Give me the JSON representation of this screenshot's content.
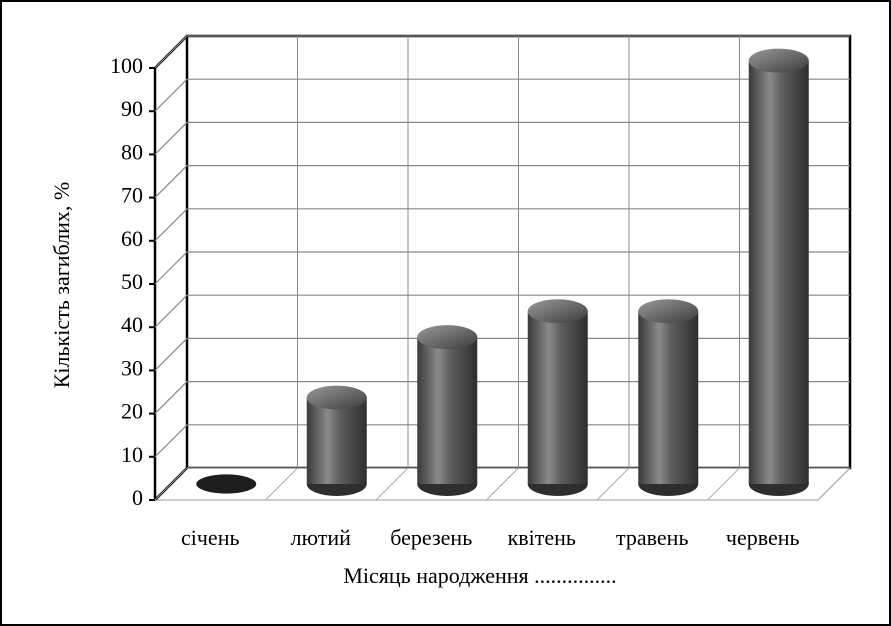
{
  "chart_data": {
    "type": "bar3d",
    "categories": [
      "січень",
      "лютий",
      "березень",
      "квітень",
      "травень",
      "червень"
    ],
    "values": [
      0,
      20,
      34,
      40,
      40,
      98
    ],
    "color": "#4d4d4d",
    "xlabel": "Місяць народження ...............",
    "ylabel": "Кількість загиблих, %",
    "ylim": [
      0,
      100
    ],
    "yticks": [
      0,
      10,
      20,
      30,
      40,
      50,
      60,
      70,
      80,
      90,
      100
    ],
    "grid": true
  }
}
